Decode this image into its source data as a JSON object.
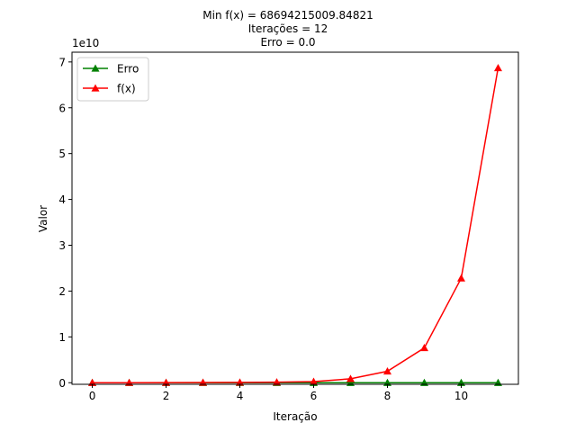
{
  "chart_data": {
    "type": "line",
    "title_lines": [
      "Min f(x) = 68694215009.84821",
      "Iterações = 12",
      "Erro = 0.0"
    ],
    "xlabel": "Iteração",
    "ylabel": "Valor",
    "y_offset_label": "1e10",
    "y_scale": 10000000000,
    "xlim": [
      -0.55,
      11.55
    ],
    "ylim": [
      -343471075.05,
      72128925760.34
    ],
    "x_ticks": [
      0,
      2,
      4,
      6,
      8,
      10
    ],
    "x_tick_labels": [
      "0",
      "2",
      "4",
      "6",
      "8",
      "10"
    ],
    "y_ticks": [
      0,
      10000000000,
      20000000000,
      30000000000,
      40000000000,
      50000000000,
      60000000000,
      70000000000
    ],
    "y_tick_labels": [
      "0",
      "1",
      "2",
      "3",
      "4",
      "5",
      "6",
      "7"
    ],
    "grid": false,
    "legend_position": "top-left",
    "series": [
      {
        "name": "Erro",
        "color": "#008000",
        "marker": "triangle-up",
        "x": [
          0,
          1,
          2,
          3,
          4,
          5,
          6,
          7,
          8,
          9,
          10,
          11
        ],
        "y": [
          0,
          0,
          0,
          0,
          0,
          0,
          0,
          0,
          0,
          0,
          0,
          0
        ]
      },
      {
        "name": "f(x)",
        "color": "#ff0000",
        "marker": "triangle-up",
        "x": [
          0,
          1,
          2,
          3,
          4,
          5,
          6,
          7,
          8,
          9,
          10,
          11
        ],
        "y": [
          4000000,
          12000000,
          30000000,
          45000000,
          70000000,
          120000000,
          250000000,
          850000000,
          2500000000,
          7600000000,
          22800000000,
          68694215009.84821
        ]
      }
    ]
  }
}
